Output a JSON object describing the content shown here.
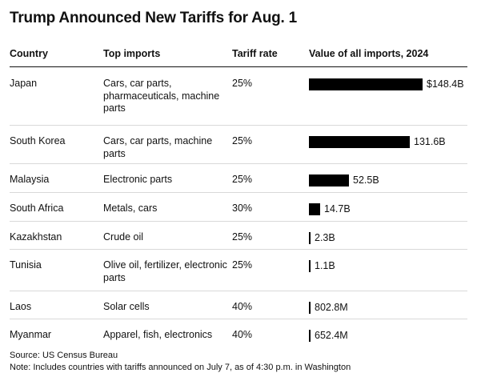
{
  "title": "Trump Announced New Tariffs for Aug. 1",
  "headers": {
    "country": "Country",
    "imports": "Top imports",
    "rate": "Tariff rate",
    "value": "Value of all imports, 2024"
  },
  "chart_data": {
    "type": "bar",
    "orientation": "horizontal",
    "title": "Trump Announced New Tariffs for Aug. 1",
    "value_header": "Value of all imports, 2024",
    "categories": [
      "Japan",
      "South Korea",
      "Malaysia",
      "South Africa",
      "Kazakhstan",
      "Tunisia",
      "Laos",
      "Myanmar"
    ],
    "values_billion_usd": [
      148.4,
      131.6,
      52.5,
      14.7,
      2.3,
      1.1,
      0.8028,
      0.6524
    ],
    "value_labels": [
      "$148.4B",
      "131.6B",
      "52.5B",
      "14.7B",
      "2.3B",
      "1.1B",
      "802.8M",
      "652.4M"
    ],
    "bar_color": "#000000",
    "rows": [
      {
        "country": "Japan",
        "imports": "Cars, car parts, pharmaceuticals, machine parts",
        "rate": "25%",
        "value_label": "$148.4B",
        "value": 148.4
      },
      {
        "country": "South Korea",
        "imports": "Cars, car parts, machine parts",
        "rate": "25%",
        "value_label": "131.6B",
        "value": 131.6
      },
      {
        "country": "Malaysia",
        "imports": "Electronic parts",
        "rate": "25%",
        "value_label": "52.5B",
        "value": 52.5
      },
      {
        "country": "South Africa",
        "imports": "Metals, cars",
        "rate": "30%",
        "value_label": "14.7B",
        "value": 14.7
      },
      {
        "country": "Kazakhstan",
        "imports": "Crude oil",
        "rate": "25%",
        "value_label": "2.3B",
        "value": 2.3
      },
      {
        "country": "Tunisia",
        "imports": "Olive oil, fertilizer, electronic parts",
        "rate": "25%",
        "value_label": "1.1B",
        "value": 1.1
      },
      {
        "country": "Laos",
        "imports": "Solar cells",
        "rate": "40%",
        "value_label": "802.8M",
        "value": 0.8028
      },
      {
        "country": "Myanmar",
        "imports": "Apparel, fish, electronics",
        "rate": "40%",
        "value_label": "652.4M",
        "value": 0.6524
      }
    ]
  },
  "footer": {
    "source": "Source: US Census Bureau",
    "note": "Note: Includes countries with tariffs announced on July 7, as of 4:30 p.m. in Washington"
  }
}
